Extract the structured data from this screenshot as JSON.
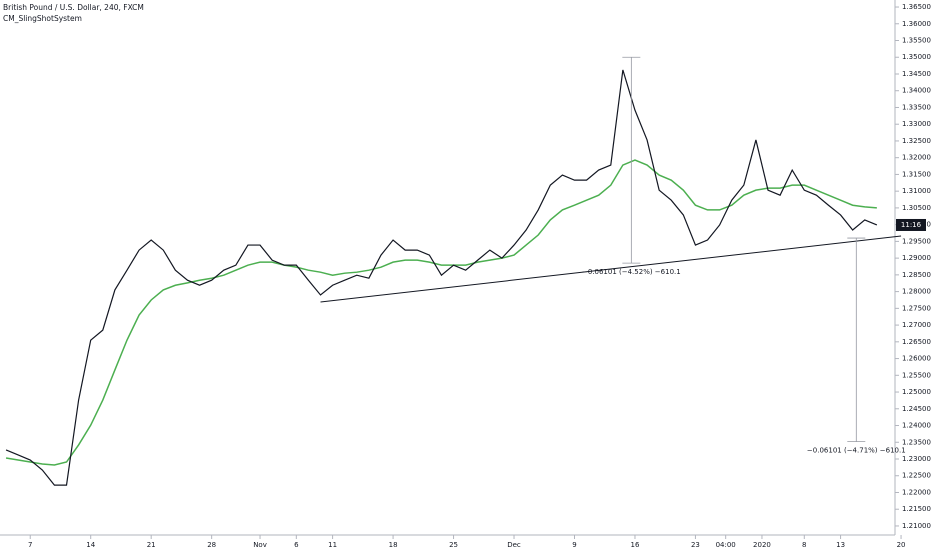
{
  "chart_data": {
    "type": "line",
    "title": "British Pound / U.S. Dollar, 240, FXCM",
    "subtitle": "CM_SlingShotSystem",
    "countdown": "11:16",
    "x": [
      -2,
      -1,
      0,
      1,
      2,
      3,
      4,
      5,
      6,
      7,
      8,
      9,
      10,
      11,
      12,
      13,
      14,
      15,
      16,
      17,
      18,
      19,
      20,
      21,
      22,
      23,
      24,
      25,
      26,
      27,
      28,
      29,
      30,
      31,
      32,
      33,
      34,
      35,
      36,
      37,
      38,
      39,
      40,
      41,
      42,
      43,
      44,
      45,
      46,
      47,
      48,
      49,
      50,
      51,
      52,
      53,
      54,
      55,
      56,
      57,
      58,
      59,
      60,
      61,
      62,
      63,
      64,
      65,
      66,
      67,
      68,
      69,
      70
    ],
    "series": [
      {
        "color": "#131722",
        "values": [
          1.2327,
          1.2312,
          1.2297,
          1.2267,
          1.2222,
          1.2222,
          1.2476,
          1.2655,
          1.2685,
          1.2805,
          1.2864,
          1.2924,
          1.2954,
          1.2924,
          1.2864,
          1.2834,
          1.2819,
          1.2834,
          1.2864,
          1.2879,
          1.2939,
          1.2939,
          1.2894,
          1.2879,
          1.2879,
          1.2834,
          1.279,
          1.2819,
          1.2834,
          1.2849,
          1.284,
          1.2909,
          1.2954,
          1.2924,
          1.2924,
          1.2909,
          1.2849,
          1.2879,
          1.2864,
          1.2894,
          1.2924,
          1.29,
          1.2939,
          1.2984,
          1.3044,
          1.3118,
          1.3148,
          1.3133,
          1.3133,
          1.3163,
          1.3178,
          1.3462,
          1.3342,
          1.3253,
          1.3103,
          1.3073,
          1.3029,
          1.2939,
          1.2954,
          1.2999,
          1.3073,
          1.3118,
          1.3253,
          1.3103,
          1.3088,
          1.3163,
          1.3103,
          1.3088,
          1.3058,
          1.3029,
          1.2984,
          1.3014,
          1.2999
        ]
      },
      {
        "color": "#4caf50",
        "values": [
          1.2303,
          1.2297,
          1.2291,
          1.2285,
          1.2282,
          1.2291,
          1.2342,
          1.2401,
          1.2476,
          1.2566,
          1.2655,
          1.273,
          1.2775,
          1.2805,
          1.2819,
          1.2826,
          1.2834,
          1.284,
          1.2849,
          1.2864,
          1.2879,
          1.2888,
          1.2888,
          1.2879,
          1.2873,
          1.2864,
          1.2858,
          1.2849,
          1.2855,
          1.2858,
          1.2864,
          1.2873,
          1.2888,
          1.2894,
          1.2894,
          1.2888,
          1.2879,
          1.2879,
          1.2879,
          1.2888,
          1.2894,
          1.29,
          1.2909,
          1.2939,
          1.2969,
          1.3014,
          1.3044,
          1.3058,
          1.3073,
          1.3088,
          1.3118,
          1.3178,
          1.3193,
          1.3178,
          1.3148,
          1.3133,
          1.3103,
          1.3058,
          1.3044,
          1.3044,
          1.3058,
          1.3088,
          1.3103,
          1.3109,
          1.3109,
          1.3118,
          1.3118,
          1.3103,
          1.3088,
          1.3073,
          1.3058,
          1.3053,
          1.305
        ]
      }
    ],
    "trendline": {
      "x": [
        24,
        72
      ],
      "values": [
        1.2769,
        1.2966
      ],
      "color": "#131722"
    },
    "measures": [
      {
        "x": 49.7,
        "from": 1.35,
        "to": 1.2885,
        "label": "−0.06101 (−4.52%) −610.1"
      },
      {
        "x": 68.3,
        "from": 1.296,
        "to": 1.2352,
        "label": "−0.06101 (−4.71%) −610.1"
      }
    ],
    "xlim": [
      -2.5,
      71.5
    ],
    "xticks": [
      {
        "value": 0,
        "label": "7"
      },
      {
        "value": 5,
        "label": "14"
      },
      {
        "value": 10,
        "label": "21"
      },
      {
        "value": 15,
        "label": "28"
      },
      {
        "value": 19,
        "label": "Nov"
      },
      {
        "value": 22,
        "label": "6"
      },
      {
        "value": 25,
        "label": "11"
      },
      {
        "value": 30,
        "label": "18"
      },
      {
        "value": 35,
        "label": "25"
      },
      {
        "value": 40,
        "label": "Dec"
      },
      {
        "value": 45,
        "label": "9"
      },
      {
        "value": 50,
        "label": "16"
      },
      {
        "value": 55,
        "label": "23"
      },
      {
        "value": 57.5,
        "label": "04:00"
      },
      {
        "value": 60.5,
        "label": "2020"
      },
      {
        "value": 64,
        "label": "8"
      },
      {
        "value": 67,
        "label": "13"
      },
      {
        "value": 72,
        "label": "20"
      }
    ],
    "ylim": [
      1.2073,
      1.3671
    ],
    "yticks": [
      {
        "value": 1.21,
        "label": "1.21000"
      },
      {
        "value": 1.215,
        "label": "1.21500"
      },
      {
        "value": 1.22,
        "label": "1.22000"
      },
      {
        "value": 1.225,
        "label": "1.22500"
      },
      {
        "value": 1.23,
        "label": "1.23000"
      },
      {
        "value": 1.235,
        "label": "1.23500"
      },
      {
        "value": 1.24,
        "label": "1.24000"
      },
      {
        "value": 1.245,
        "label": "1.24500"
      },
      {
        "value": 1.25,
        "label": "1.25000"
      },
      {
        "value": 1.255,
        "label": "1.25500"
      },
      {
        "value": 1.26,
        "label": "1.26000"
      },
      {
        "value": 1.265,
        "label": "1.26500"
      },
      {
        "value": 1.27,
        "label": "1.27000"
      },
      {
        "value": 1.275,
        "label": "1.27500"
      },
      {
        "value": 1.28,
        "label": "1.28000"
      },
      {
        "value": 1.285,
        "label": "1.28500"
      },
      {
        "value": 1.29,
        "label": "1.29000"
      },
      {
        "value": 1.295,
        "label": "1.29500"
      },
      {
        "value": 1.3,
        "label": "1.30000"
      },
      {
        "value": 1.305,
        "label": "1.30500"
      },
      {
        "value": 1.31,
        "label": "1.31000"
      },
      {
        "value": 1.315,
        "label": "1.31500"
      },
      {
        "value": 1.32,
        "label": "1.32000"
      },
      {
        "value": 1.325,
        "label": "1.32500"
      },
      {
        "value": 1.33,
        "label": "1.33000"
      },
      {
        "value": 1.335,
        "label": "1.33500"
      },
      {
        "value": 1.34,
        "label": "1.34000"
      },
      {
        "value": 1.345,
        "label": "1.34500"
      },
      {
        "value": 1.35,
        "label": "1.35000"
      },
      {
        "value": 1.355,
        "label": "1.35500"
      },
      {
        "value": 1.36,
        "label": "1.36000"
      },
      {
        "value": 1.365,
        "label": "1.36500"
      }
    ],
    "grid": false
  }
}
